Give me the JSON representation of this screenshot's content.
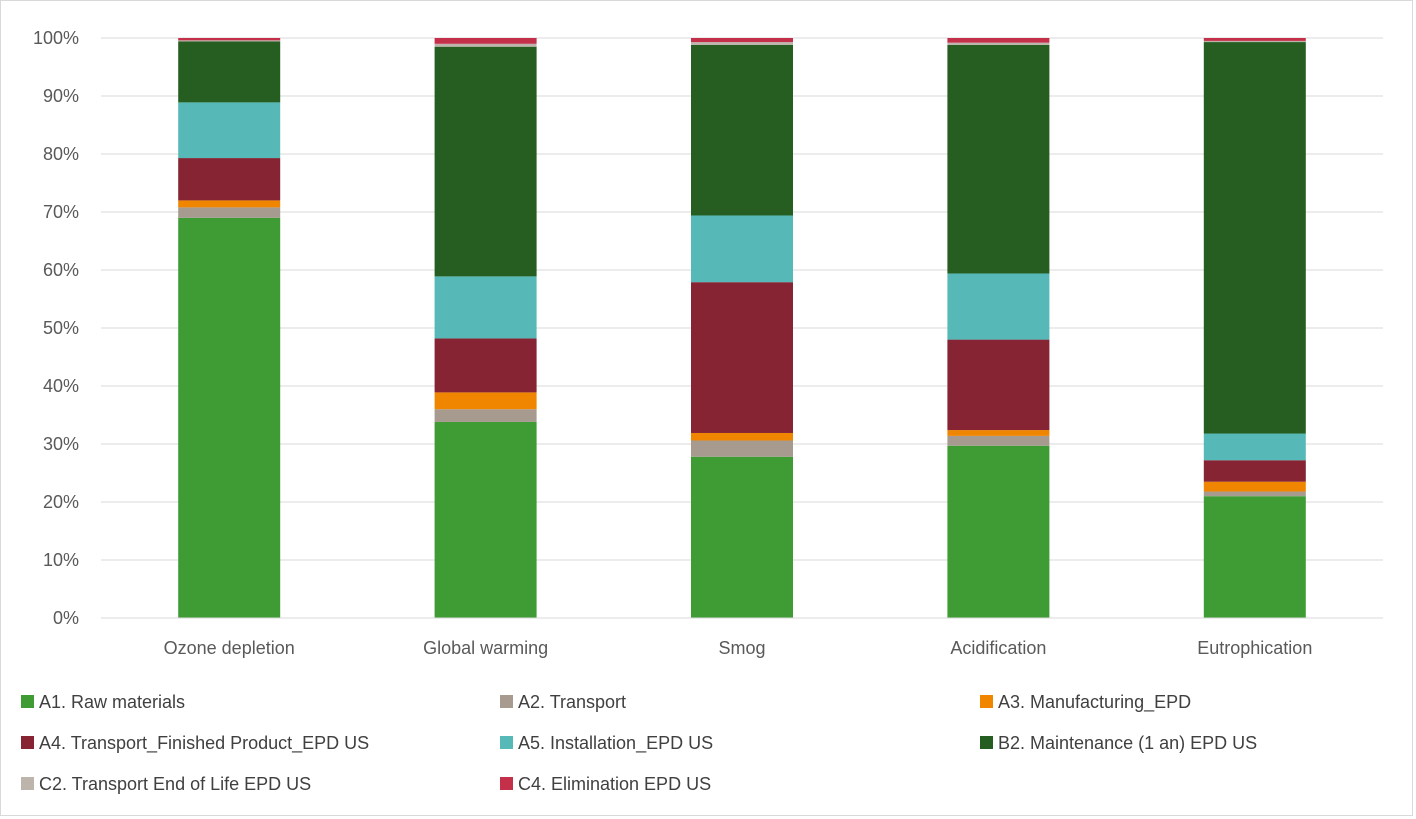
{
  "chart_data": {
    "type": "bar",
    "stacked": true,
    "percent_stacked": true,
    "categories": [
      "Ozone depletion",
      "Global warming",
      "Smog",
      "Acidification",
      "Eutrophication"
    ],
    "y_ticks": [
      "0%",
      "10%",
      "20%",
      "30%",
      "40%",
      "50%",
      "60%",
      "70%",
      "80%",
      "90%",
      "100%"
    ],
    "ylim": [
      0,
      100
    ],
    "grid": true,
    "legend_position": "bottom",
    "series": [
      {
        "name": "A1. Raw materials",
        "color": "#3f9c35",
        "values": [
          69.0,
          33.8,
          27.8,
          29.7,
          21.0
        ]
      },
      {
        "name": "A2. Transport",
        "color": "#a69b8e",
        "values": [
          1.8,
          2.2,
          2.8,
          1.7,
          0.8
        ]
      },
      {
        "name": "A3. Manufacturing_EPD",
        "color": "#f08500",
        "values": [
          1.2,
          2.9,
          1.3,
          1.0,
          1.7
        ]
      },
      {
        "name": "A4. Transport_Finished Product_EPD US",
        "color": "#862433",
        "values": [
          7.3,
          9.3,
          26.0,
          15.6,
          3.7
        ]
      },
      {
        "name": "A5. Installation_EPD US",
        "color": "#56b9b8",
        "values": [
          9.6,
          10.7,
          11.5,
          11.4,
          4.6
        ]
      },
      {
        "name": "B2. Maintenance (1 an) EPD US",
        "color": "#255e20",
        "values": [
          10.5,
          39.6,
          29.4,
          39.4,
          67.5
        ]
      },
      {
        "name": "C2. Transport End of Life EPD US",
        "color": "#bdb5ab",
        "values": [
          0.2,
          0.5,
          0.5,
          0.4,
          0.2
        ]
      },
      {
        "name": "C4. Elimination EPD US",
        "color": "#c4304a",
        "values": [
          0.4,
          1.0,
          0.7,
          0.8,
          0.5
        ]
      }
    ]
  }
}
